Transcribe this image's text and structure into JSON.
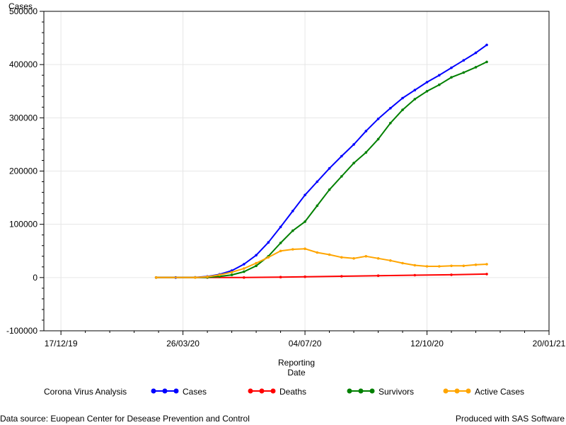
{
  "colors": {
    "cases": "#0000ff",
    "deaths": "#ff0000",
    "survivors": "#008000",
    "active": "#ffa500",
    "grid": "#e6e6e6",
    "axis": "#000000"
  },
  "footnotes": {
    "left": "Data source: Euopean Center for Desease Prevention and Control",
    "right": "Produced with SAS Software"
  },
  "chart_data": {
    "type": "line",
    "title": "",
    "ylabel": "Cases",
    "xlabel_lines": [
      "Reporting",
      "Date"
    ],
    "legend_title": "Corona Virus Analysis",
    "legend_placement": "bottom",
    "grid": true,
    "marker": "filled-circle",
    "ylim": [
      -100000,
      500000
    ],
    "yticks": [
      -100000,
      0,
      100000,
      200000,
      300000,
      400000,
      500000
    ],
    "ytick_labels": [
      "-100000",
      "0",
      "100000",
      "200000",
      "300000",
      "400000",
      "500000"
    ],
    "xlim": [
      "2019-12-03",
      "2021-01-20"
    ],
    "xticks": [
      "2019-12-17",
      "2020-03-26",
      "2020-07-04",
      "2020-10-12",
      "2021-01-20"
    ],
    "xtick_labels": [
      "17/12/19",
      "26/03/20",
      "04/07/20",
      "12/10/20",
      "20/01/21"
    ],
    "series": [
      {
        "name": "Cases",
        "color_key": "cases",
        "x": [
          "2020-03-04",
          "2020-03-20",
          "2020-04-05",
          "2020-04-15",
          "2020-04-25",
          "2020-05-05",
          "2020-05-15",
          "2020-05-25",
          "2020-06-04",
          "2020-06-14",
          "2020-06-24",
          "2020-07-04",
          "2020-07-14",
          "2020-07-24",
          "2020-08-03",
          "2020-08-13",
          "2020-08-23",
          "2020-09-02",
          "2020-09-12",
          "2020-09-22",
          "2020-10-02",
          "2020-10-12",
          "2020-10-22",
          "2020-11-01",
          "2020-11-11",
          "2020-11-21",
          "2020-11-30"
        ],
        "values": [
          0,
          0,
          300,
          2000,
          6000,
          13000,
          25000,
          42000,
          66000,
          95000,
          125000,
          155000,
          180000,
          205000,
          228000,
          250000,
          275000,
          298000,
          318000,
          337000,
          352000,
          367000,
          380000,
          394000,
          408000,
          422000,
          437000
        ]
      },
      {
        "name": "Deaths",
        "color_key": "deaths",
        "x": [
          "2020-03-04",
          "2020-04-15",
          "2020-05-15",
          "2020-06-14",
          "2020-07-04",
          "2020-08-03",
          "2020-09-02",
          "2020-10-02",
          "2020-11-01",
          "2020-11-30"
        ],
        "values": [
          0,
          0,
          0,
          800,
          1500,
          2500,
          3500,
          4500,
          5200,
          6500
        ]
      },
      {
        "name": "Survivors",
        "color_key": "survivors",
        "x": [
          "2020-03-04",
          "2020-04-05",
          "2020-04-15",
          "2020-04-25",
          "2020-05-05",
          "2020-05-15",
          "2020-05-25",
          "2020-06-04",
          "2020-06-14",
          "2020-06-24",
          "2020-07-04",
          "2020-07-14",
          "2020-07-24",
          "2020-08-03",
          "2020-08-13",
          "2020-08-23",
          "2020-09-02",
          "2020-09-12",
          "2020-09-22",
          "2020-10-02",
          "2020-10-12",
          "2020-10-22",
          "2020-11-01",
          "2020-11-11",
          "2020-11-21",
          "2020-11-30"
        ],
        "values": [
          0,
          0,
          300,
          2000,
          5000,
          11000,
          22000,
          40000,
          65000,
          88000,
          105000,
          135000,
          165000,
          190000,
          215000,
          235000,
          260000,
          290000,
          315000,
          335000,
          350000,
          362000,
          376000,
          385000,
          395000,
          405000
        ]
      },
      {
        "name": "Active Cases",
        "color_key": "active",
        "x": [
          "2020-03-04",
          "2020-04-05",
          "2020-04-15",
          "2020-04-25",
          "2020-05-05",
          "2020-05-15",
          "2020-05-25",
          "2020-06-04",
          "2020-06-14",
          "2020-06-24",
          "2020-07-04",
          "2020-07-14",
          "2020-07-24",
          "2020-08-03",
          "2020-08-13",
          "2020-08-23",
          "2020-09-02",
          "2020-09-12",
          "2020-09-22",
          "2020-10-02",
          "2020-10-12",
          "2020-10-22",
          "2020-11-01",
          "2020-11-11",
          "2020-11-21",
          "2020-11-30"
        ],
        "values": [
          0,
          0,
          1500,
          5000,
          10000,
          17000,
          27000,
          38000,
          50000,
          53000,
          54000,
          47000,
          43000,
          38000,
          36000,
          40000,
          36000,
          32000,
          27000,
          23000,
          21000,
          21000,
          22000,
          22000,
          24000,
          25000
        ]
      }
    ]
  }
}
